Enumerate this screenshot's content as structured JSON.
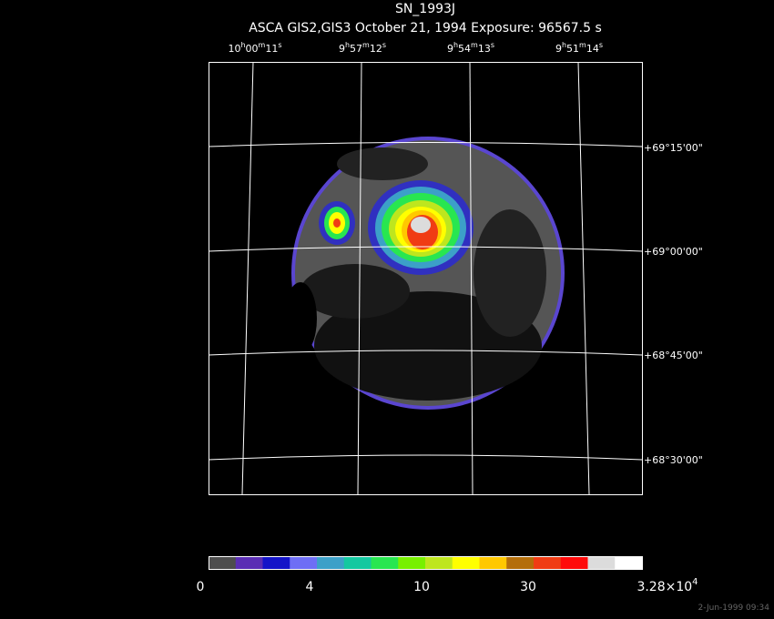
{
  "header": {
    "title": "SN_1993J",
    "subtitle": "ASCA GIS2,GIS3 October 21, 1994 Exposure: 96567.5 s"
  },
  "ra_labels": [
    [
      "10",
      "h",
      "00",
      "m",
      "11",
      "s"
    ],
    [
      "9",
      "h",
      "57",
      "m",
      "12",
      "s"
    ],
    [
      "9",
      "h",
      "54",
      "m",
      "13",
      "s"
    ],
    [
      "9",
      "h",
      "51",
      "m",
      "14",
      "s"
    ]
  ],
  "dec_labels": [
    "+69°15'00\"",
    "+69°00'00\"",
    "+68°45'00\"",
    "+68°30'00\""
  ],
  "colorbar": {
    "colors": [
      "#4d4d4d",
      "#5a2db4",
      "#1414c8",
      "#6e6ef5",
      "#3ca0c8",
      "#14c8a0",
      "#28e650",
      "#78f000",
      "#bee61e",
      "#ffff00",
      "#ffc800",
      "#b46e0a",
      "#f03c14",
      "#ff0a0a",
      "#dcdcdc",
      "#ffffff"
    ],
    "labels": [
      "0",
      "4",
      "10",
      "30"
    ],
    "max_label": {
      "mantissa": "3.28×10",
      "exponent": "4"
    }
  },
  "footer": {
    "timestamp": "2-Jun-1999 09:34"
  }
}
